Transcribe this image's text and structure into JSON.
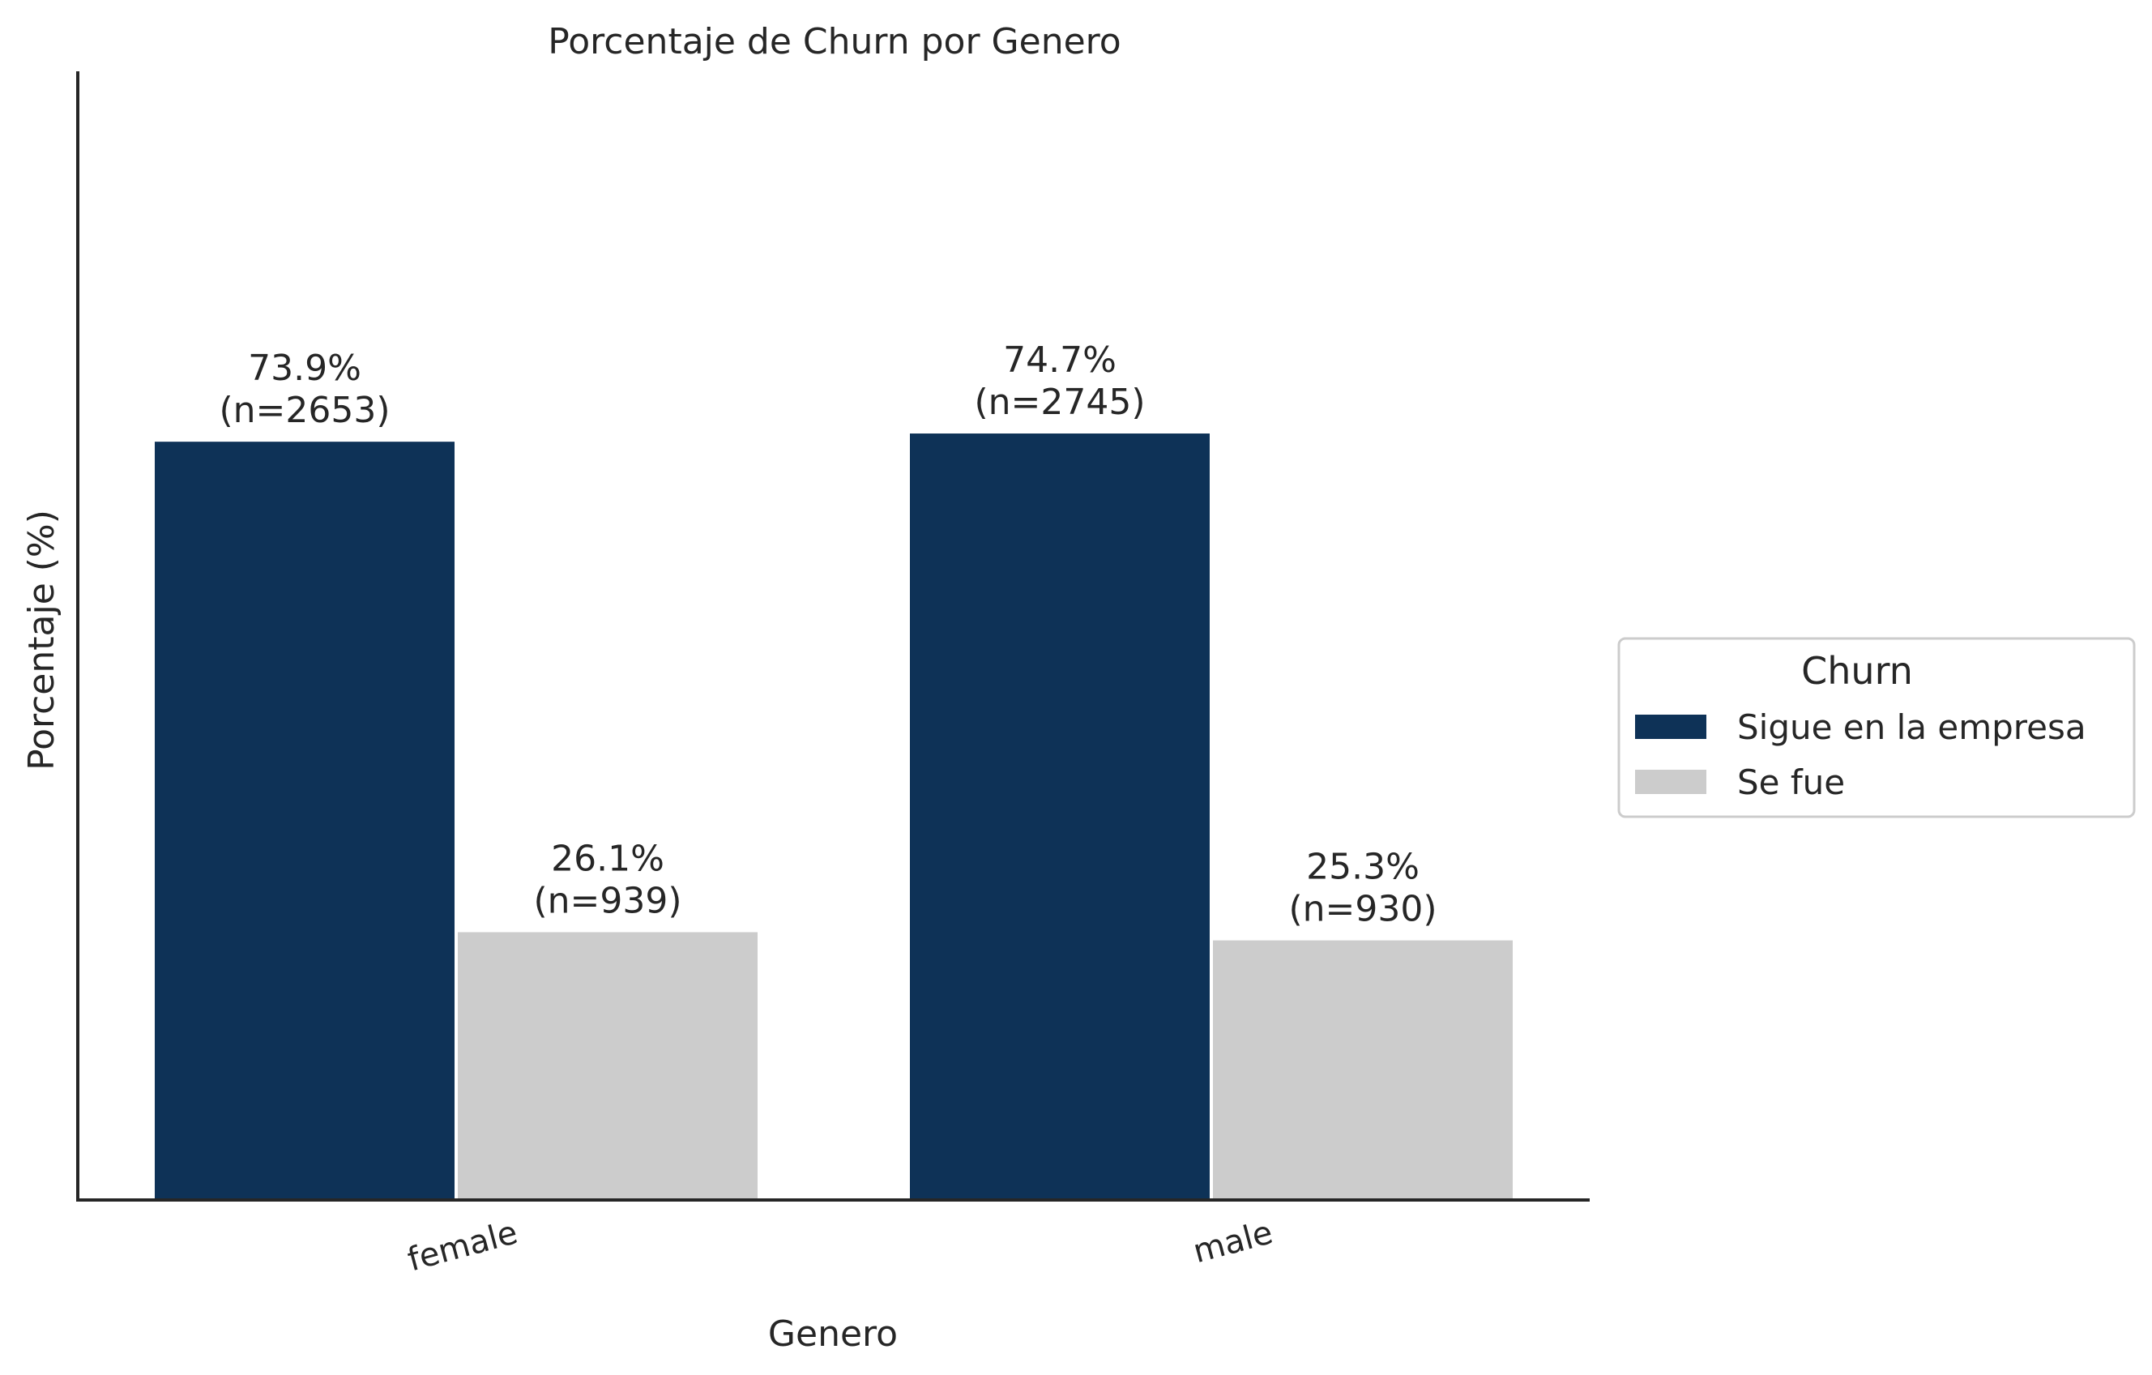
{
  "chart_data": {
    "type": "bar",
    "title": "Porcentaje de Churn por Genero",
    "xlabel": "Genero",
    "ylabel": "Porcentaje (%)",
    "categories": [
      "female",
      "male"
    ],
    "series": [
      {
        "name": "Sigue en la empresa",
        "values": [
          73.9,
          74.7
        ],
        "labels": [
          "73.9%",
          "74.7%"
        ],
        "counts": [
          "(n=2653)",
          "(n=2745)"
        ]
      },
      {
        "name": "Se fue",
        "values": [
          26.1,
          25.3
        ],
        "labels": [
          "26.1%",
          "25.3%"
        ],
        "counts": [
          "(n=939)",
          "(n=930)"
        ]
      }
    ],
    "ylim": [
      0,
      110
    ],
    "y_ticks_shown": false,
    "grid": false,
    "x_tick_rotation_deg": 15,
    "legend": {
      "title": "Churn",
      "placement": "right-center-outside"
    },
    "colors": {
      "series": [
        "#0e3257",
        "#cccccc"
      ],
      "axis": "#262626",
      "text": "#262626",
      "legend_border": "#cccccc"
    }
  }
}
